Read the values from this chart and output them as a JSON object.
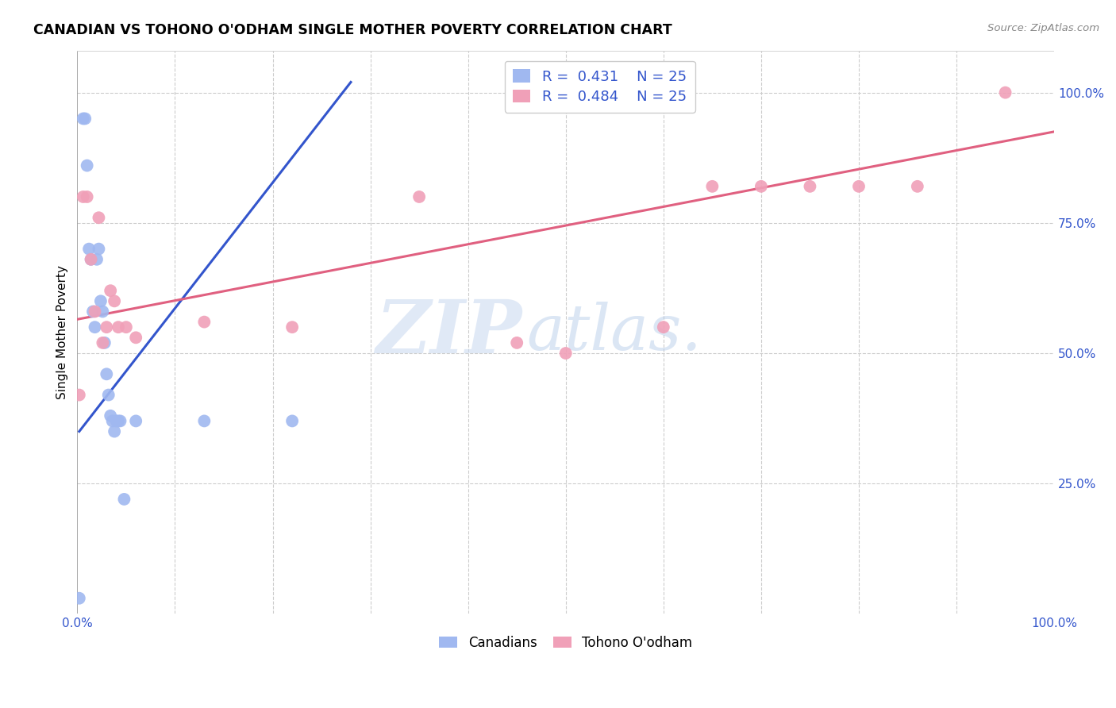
{
  "title": "CANADIAN VS TOHONO O'ODHAM SINGLE MOTHER POVERTY CORRELATION CHART",
  "source": "Source: ZipAtlas.com",
  "ylabel": "Single Mother Poverty",
  "legend_label1": "Canadians",
  "legend_label2": "Tohono O'odham",
  "r1": "0.431",
  "n1": "25",
  "r2": "0.484",
  "n2": "25",
  "watermark_zip": "ZIP",
  "watermark_atlas": "atlas.",
  "blue_scatter_color": "#a0b8f0",
  "pink_scatter_color": "#f0a0b8",
  "blue_line_color": "#3355cc",
  "pink_line_color": "#e06080",
  "blue_legend_color": "#a0b8f0",
  "pink_legend_color": "#f0a0b8",
  "blue_text_color": "#3355cc",
  "grid_color": "#cccccc",
  "ytick_labels": [
    "25.0%",
    "50.0%",
    "75.0%",
    "100.0%"
  ],
  "ytick_values": [
    0.25,
    0.5,
    0.75,
    1.0
  ],
  "canadians_x": [
    0.002,
    0.006,
    0.008,
    0.01,
    0.012,
    0.014,
    0.016,
    0.018,
    0.02,
    0.022,
    0.024,
    0.026,
    0.028,
    0.03,
    0.032,
    0.034,
    0.036,
    0.038,
    0.04,
    0.042,
    0.044,
    0.048,
    0.06,
    0.13,
    0.22
  ],
  "canadians_y": [
    0.03,
    0.95,
    0.95,
    0.86,
    0.7,
    0.68,
    0.58,
    0.55,
    0.68,
    0.7,
    0.6,
    0.58,
    0.52,
    0.46,
    0.42,
    0.38,
    0.37,
    0.35,
    0.37,
    0.37,
    0.37,
    0.22,
    0.37,
    0.37,
    0.37
  ],
  "tohono_x": [
    0.002,
    0.006,
    0.01,
    0.014,
    0.018,
    0.022,
    0.026,
    0.03,
    0.034,
    0.038,
    0.042,
    0.05,
    0.06,
    0.13,
    0.22,
    0.35,
    0.45,
    0.5,
    0.6,
    0.65,
    0.7,
    0.75,
    0.8,
    0.86,
    0.95
  ],
  "tohono_y": [
    0.42,
    0.8,
    0.8,
    0.68,
    0.58,
    0.76,
    0.52,
    0.55,
    0.62,
    0.6,
    0.55,
    0.55,
    0.53,
    0.56,
    0.55,
    0.8,
    0.52,
    0.5,
    0.55,
    0.82,
    0.82,
    0.82,
    0.82,
    0.82,
    1.0
  ],
  "blue_line_x": [
    0.002,
    0.28
  ],
  "blue_line_y": [
    0.35,
    1.02
  ],
  "pink_line_x": [
    0.0,
    1.0
  ],
  "pink_line_y": [
    0.565,
    0.925
  ],
  "xmin": 0.0,
  "xmax": 1.0,
  "ymin": 0.0,
  "ymax": 1.08
}
